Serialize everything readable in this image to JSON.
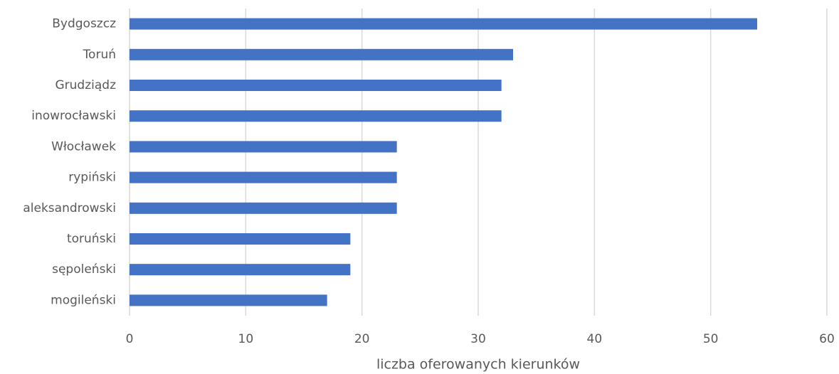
{
  "chart_data": {
    "type": "hbar",
    "categories": [
      "Bydgoszcz",
      "Toruń",
      "Grudziądz",
      "inowrocławski",
      "Włocławek",
      "rypiński",
      "aleksandrowski",
      "toruński",
      "sępoleński",
      "mogileński"
    ],
    "values": [
      54,
      33,
      32,
      32,
      23,
      23,
      23,
      19,
      19,
      17
    ],
    "color": "#4472c4",
    "xlabel": "liczba oferowanych kierunków",
    "xlim": [
      0,
      60
    ],
    "xticks": [
      0,
      10,
      20,
      30,
      40,
      50,
      60
    ],
    "grid": true
  }
}
